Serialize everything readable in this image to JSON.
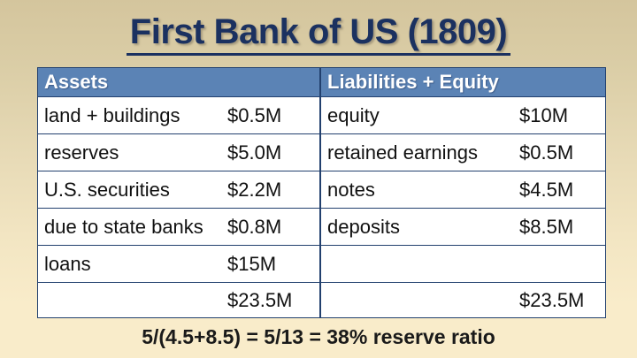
{
  "title": "First Bank of US (1809)",
  "table": {
    "assets": {
      "header": "Assets",
      "rows": [
        {
          "label": "land + buildings",
          "value": "$0.5M"
        },
        {
          "label": "reserves",
          "value": "$5.0M"
        },
        {
          "label": "U.S. securities",
          "value": "$2.2M"
        },
        {
          "label": "due to state banks",
          "value": "$0.8M"
        },
        {
          "label": "loans",
          "value": "$15M"
        }
      ],
      "total": "$23.5M"
    },
    "liabilities": {
      "header": "Liabilities + Equity",
      "rows": [
        {
          "label": "equity",
          "value": "$10M"
        },
        {
          "label": "retained earnings",
          "value": "$0.5M"
        },
        {
          "label": "notes",
          "value": "$4.5M"
        },
        {
          "label": "deposits",
          "value": "$8.5M"
        },
        {
          "label": "",
          "value": ""
        }
      ],
      "total": "$23.5M"
    }
  },
  "footnote": "5/(4.5+8.5) = 5/13 = 38% reserve ratio",
  "colors": {
    "title": "#1b3160",
    "header_bg": "#5b83b5",
    "table_border": "#22406e",
    "background_top": "#d4c59d",
    "background_bottom": "#f9ecca"
  }
}
